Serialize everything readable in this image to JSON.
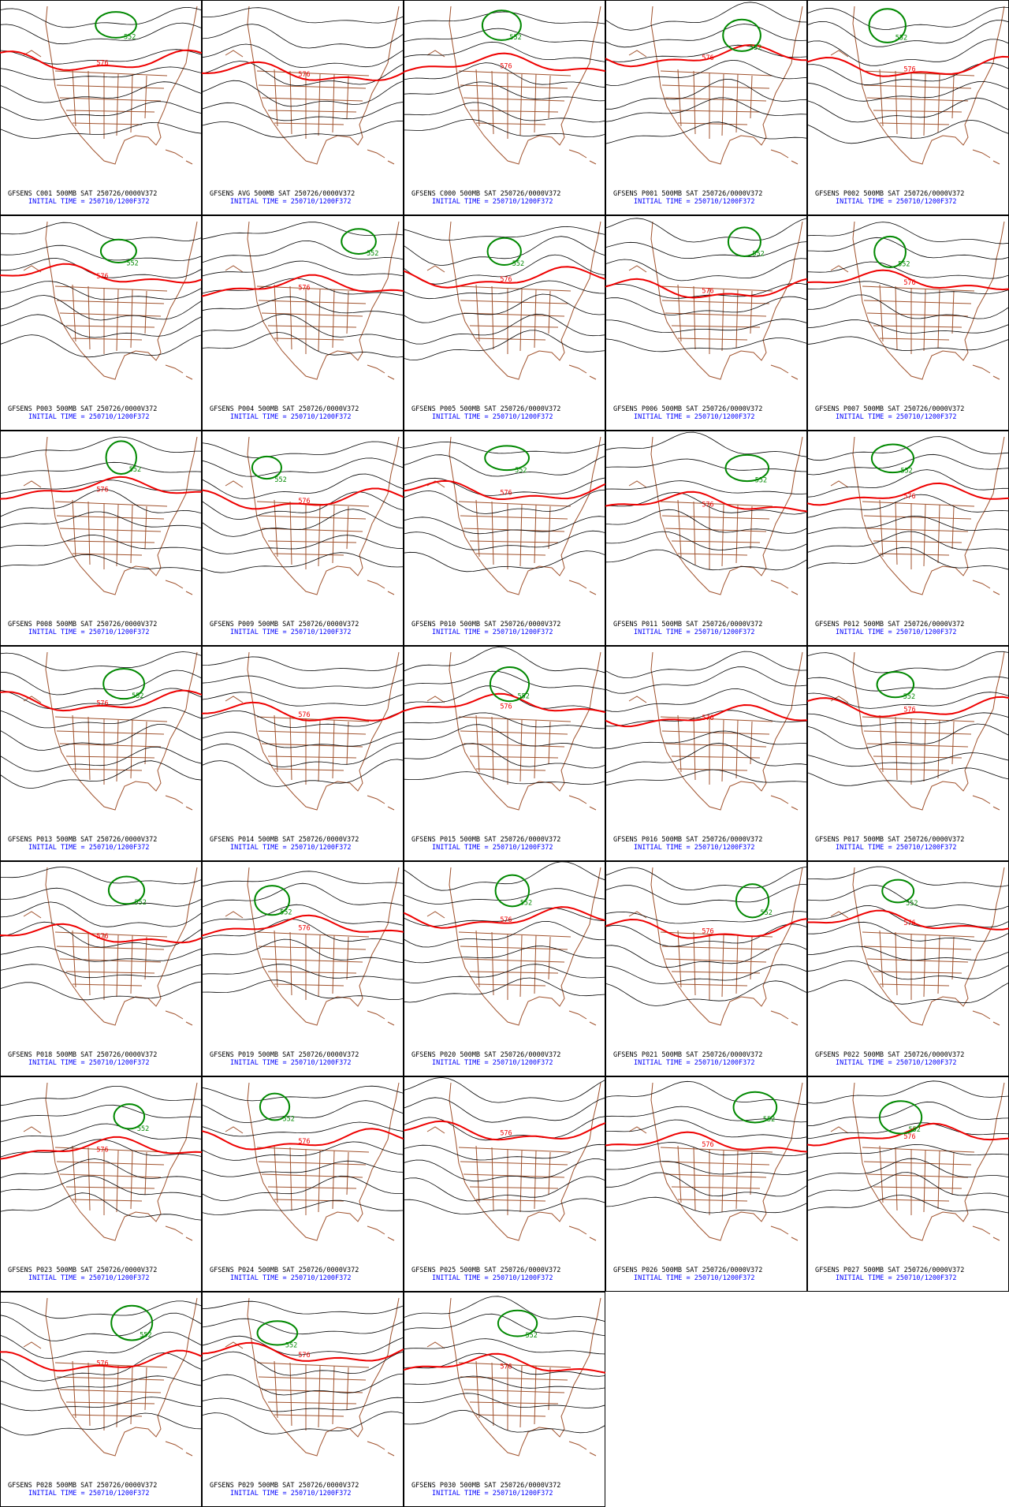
{
  "panels": [
    {
      "title": "GFSENS C001 500MB SAT 250726/0000V372",
      "init_time": "INITIAL TIME = 250710/1200F372",
      "contour_labels": [
        "576",
        "552"
      ]
    },
    {
      "title": "GFSENS AVG 500MB SAT 250726/0000V372",
      "init_time": "INITIAL TIME = 250710/1200F372",
      "contour_labels": [
        "576"
      ]
    },
    {
      "title": "GFSENS C000 500MB SAT 250726/0000V372",
      "init_time": "INITIAL TIME = 250710/1200F372",
      "contour_labels": [
        "576",
        "552"
      ]
    },
    {
      "title": "GFSENS P001 500MB SAT 250726/0000V372",
      "init_time": "INITIAL TIME = 250710/1200F372",
      "contour_labels": [
        "576",
        "552"
      ]
    },
    {
      "title": "GFSENS P002 500MB SAT 250726/0000V372",
      "init_time": "INITIAL TIME = 250710/1200F372",
      "contour_labels": [
        "576",
        "552"
      ]
    },
    {
      "title": "GFSENS P003 500MB SAT 250726/0000V372",
      "init_time": "INITIAL TIME = 250710/1200F372",
      "contour_labels": [
        "576",
        "552"
      ]
    },
    {
      "title": "GFSENS P004 500MB SAT 250726/0000V372",
      "init_time": "INITIAL TIME = 250710/1200F372",
      "contour_labels": [
        "576",
        "552"
      ]
    },
    {
      "title": "GFSENS P005 500MB SAT 250726/0000V372",
      "init_time": "INITIAL TIME = 250710/1200F372",
      "contour_labels": [
        "576",
        "552"
      ]
    },
    {
      "title": "GFSENS P006 500MB SAT 250726/0000V372",
      "init_time": "INITIAL TIME = 250710/1200F372",
      "contour_labels": [
        "576",
        "552"
      ]
    },
    {
      "title": "GFSENS P007 500MB SAT 250726/0000V372",
      "init_time": "INITIAL TIME = 250710/1200F372",
      "contour_labels": [
        "576",
        "552"
      ]
    },
    {
      "title": "GFSENS P008 500MB SAT 250726/0000V372",
      "init_time": "INITIAL TIME = 250710/1200F372",
      "contour_labels": [
        "576",
        "552"
      ]
    },
    {
      "title": "GFSENS P009 500MB SAT 250726/0000V372",
      "init_time": "INITIAL TIME = 250710/1200F372",
      "contour_labels": [
        "576",
        "552"
      ]
    },
    {
      "title": "GFSENS P010 500MB SAT 250726/0000V372",
      "init_time": "INITIAL TIME = 250710/1200F372",
      "contour_labels": [
        "576",
        "552"
      ]
    },
    {
      "title": "GFSENS P011 500MB SAT 250726/0000V372",
      "init_time": "INITIAL TIME = 250710/1200F372",
      "contour_labels": [
        "576",
        "552"
      ]
    },
    {
      "title": "GFSENS P012 500MB SAT 250726/0000V372",
      "init_time": "INITIAL TIME = 250710/1200F372",
      "contour_labels": [
        "576",
        "552"
      ]
    },
    {
      "title": "GFSENS P013 500MB SAT 250726/0000V372",
      "init_time": "INITIAL TIME = 250710/1200F372",
      "contour_labels": [
        "576",
        "552"
      ]
    },
    {
      "title": "GFSENS P014 500MB SAT 250726/0000V372",
      "init_time": "INITIAL TIME = 250710/1200F372",
      "contour_labels": [
        "576"
      ]
    },
    {
      "title": "GFSENS P015 500MB SAT 250726/0000V372",
      "init_time": "INITIAL TIME = 250710/1200F372",
      "contour_labels": [
        "576",
        "552"
      ]
    },
    {
      "title": "GFSENS P016 500MB SAT 250726/0000V372",
      "init_time": "INITIAL TIME = 250710/1200F372",
      "contour_labels": [
        "576"
      ]
    },
    {
      "title": "GFSENS P017 500MB SAT 250726/0000V372",
      "init_time": "INITIAL TIME = 250710/1200F372",
      "contour_labels": [
        "576",
        "552"
      ]
    },
    {
      "title": "GFSENS P018 500MB SAT 250726/0000V372",
      "init_time": "INITIAL TIME = 250710/1200F372",
      "contour_labels": [
        "576",
        "552"
      ]
    },
    {
      "title": "GFSENS P019 500MB SAT 250726/0000V372",
      "init_time": "INITIAL TIME = 250710/1200F372",
      "contour_labels": [
        "576",
        "552"
      ]
    },
    {
      "title": "GFSENS P020 500MB SAT 250726/0000V372",
      "init_time": "INITIAL TIME = 250710/1200F372",
      "contour_labels": [
        "576",
        "552"
      ]
    },
    {
      "title": "GFSENS P021 500MB SAT 250726/0000V372",
      "init_time": "INITIAL TIME = 250710/1200F372",
      "contour_labels": [
        "576",
        "552"
      ]
    },
    {
      "title": "GFSENS P022 500MB SAT 250726/0000V372",
      "init_time": "INITIAL TIME = 250710/1200F372",
      "contour_labels": [
        "576",
        "552"
      ]
    },
    {
      "title": "GFSENS P023 500MB SAT 250726/0000V372",
      "init_time": "INITIAL TIME = 250710/1200F372",
      "contour_labels": [
        "576",
        "552"
      ]
    },
    {
      "title": "GFSENS P024 500MB SAT 250726/0000V372",
      "init_time": "INITIAL TIME = 250710/1200F372",
      "contour_labels": [
        "576",
        "552"
      ]
    },
    {
      "title": "GFSENS P025 500MB SAT 250726/0000V372",
      "init_time": "INITIAL TIME = 250710/1200F372",
      "contour_labels": [
        "576"
      ]
    },
    {
      "title": "GFSENS P026 500MB SAT 250726/0000V372",
      "init_time": "INITIAL TIME = 250710/1200F372",
      "contour_labels": [
        "576",
        "552"
      ]
    },
    {
      "title": "GFSENS P027 500MB SAT 250726/0000V372",
      "init_time": "INITIAL TIME = 250710/1200F372",
      "contour_labels": [
        "576",
        "552"
      ]
    },
    {
      "title": "GFSENS P028 500MB SAT 250726/0000V372",
      "init_time": "INITIAL TIME = 250710/1200F372",
      "contour_labels": [
        "576",
        "552"
      ]
    },
    {
      "title": "GFSENS P029 500MB SAT 250726/0000V372",
      "init_time": "INITIAL TIME = 250710/1200F372",
      "contour_labels": [
        "576",
        "552"
      ]
    },
    {
      "title": "GFSENS P030 500MB SAT 250726/0000V372",
      "init_time": "INITIAL TIME = 250710/1200F372",
      "contour_labels": [
        "576",
        "552"
      ]
    }
  ]
}
